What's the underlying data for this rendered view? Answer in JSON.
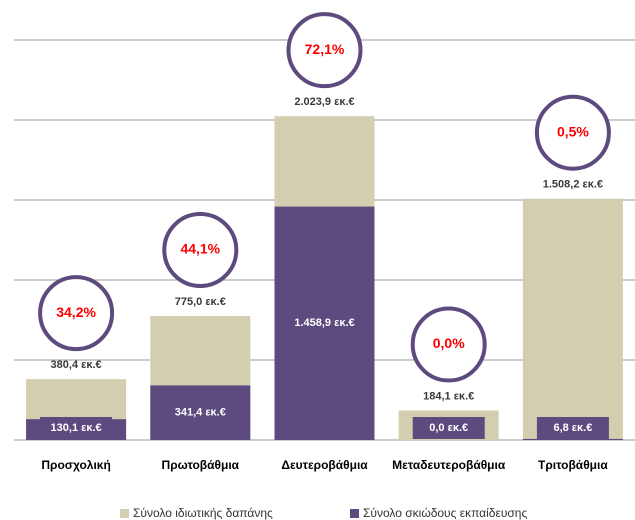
{
  "chart_data": {
    "type": "bar",
    "categories": [
      "Προσχολική",
      "Πρωτοβάθμια",
      "Δευτεροβάθμια",
      "Μεταδευτεροβάθμια",
      "Τριτοβάθμια"
    ],
    "series": [
      {
        "name": "Σύνολο ιδιωτικής δαπάνης",
        "color": "#d4ceb0",
        "values": [
          380.4,
          775.0,
          2023.9,
          184.1,
          1508.2
        ],
        "value_labels": [
          "380,4 εκ.€",
          "775,0 εκ.€",
          "2.023,9 εκ.€",
          "184,1 εκ.€",
          "1.508,2 εκ.€"
        ]
      },
      {
        "name": "Σύνολο σκιώδους εκπαίδευσης",
        "color": "#5d4a7e",
        "values": [
          130.1,
          341.4,
          1458.9,
          0.0,
          6.8
        ],
        "value_labels": [
          "130,1 εκ.€",
          "341,4 εκ.€",
          "1.458,9 εκ.€",
          "0,0 εκ.€",
          "6,8 εκ.€"
        ]
      }
    ],
    "shares": {
      "values": [
        34.2,
        44.1,
        72.1,
        0.0,
        0.5
      ],
      "value_labels": [
        "34,2%",
        "44,1%",
        "72,1%",
        "0,0%",
        "0,5%"
      ]
    },
    "ylim": [
      0,
      2500
    ],
    "yticks": [
      0,
      500,
      1000,
      1500,
      2000,
      2500
    ],
    "grid": true,
    "legend": "bottom"
  }
}
